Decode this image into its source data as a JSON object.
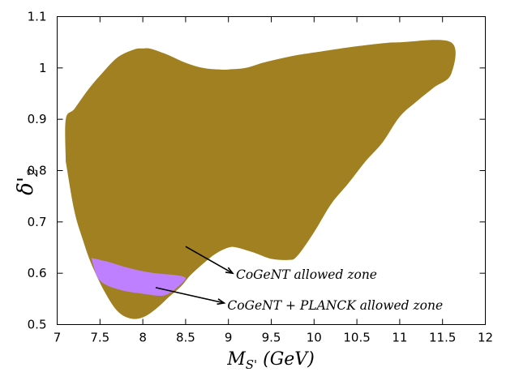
{
  "chart_data": {
    "type": "area",
    "xlim": [
      7,
      12
    ],
    "ylim": [
      0.5,
      1.1
    ],
    "x_ticks": [
      7,
      7.5,
      8,
      8.5,
      9,
      9.5,
      10,
      10.5,
      11,
      11.5,
      12
    ],
    "x_tick_labels": [
      "7",
      "7.5",
      "8",
      "8.5",
      "9",
      "9.5",
      "10",
      "10.5",
      "11",
      "11.5",
      "12"
    ],
    "y_ticks": [
      0.5,
      0.6,
      0.7,
      0.8,
      0.9,
      1.0,
      1.1
    ],
    "y_tick_labels": [
      "0.5",
      "0.6",
      "0.7",
      "0.8",
      "0.9",
      "1",
      "1.1"
    ],
    "xlabel": {
      "main": "M",
      "sub": "S'",
      "rest": " (GeV)"
    },
    "ylabel": {
      "main": "δ'",
      "sub": "2"
    },
    "grid": false,
    "series": [
      {
        "name": "CoGeNT allowed zone",
        "color": "#a08020",
        "boundary": [
          [
            7.1,
            0.818
          ],
          [
            7.1,
            0.9
          ],
          [
            7.2,
            0.92
          ],
          [
            7.35,
            0.955
          ],
          [
            7.5,
            0.985
          ],
          [
            7.7,
            1.02
          ],
          [
            7.9,
            1.036
          ],
          [
            8.0,
            1.038
          ],
          [
            8.1,
            1.037
          ],
          [
            8.3,
            1.025
          ],
          [
            8.5,
            1.01
          ],
          [
            8.7,
            1.0
          ],
          [
            8.9,
            0.997
          ],
          [
            9.0,
            0.997
          ],
          [
            9.2,
            1.0
          ],
          [
            9.4,
            1.01
          ],
          [
            9.6,
            1.018
          ],
          [
            9.8,
            1.025
          ],
          [
            10.0,
            1.03
          ],
          [
            10.4,
            1.04
          ],
          [
            10.8,
            1.048
          ],
          [
            11.0,
            1.05
          ],
          [
            11.6,
            1.05
          ],
          [
            11.6,
            0.988
          ],
          [
            11.4,
            0.962
          ],
          [
            11.2,
            0.935
          ],
          [
            11.0,
            0.905
          ],
          [
            10.8,
            0.855
          ],
          [
            10.6,
            0.818
          ],
          [
            10.4,
            0.775
          ],
          [
            10.2,
            0.735
          ],
          [
            10.0,
            0.68
          ],
          [
            9.8,
            0.633
          ],
          [
            9.7,
            0.626
          ],
          [
            9.5,
            0.628
          ],
          [
            9.3,
            0.64
          ],
          [
            9.1,
            0.65
          ],
          [
            9.0,
            0.65
          ],
          [
            8.85,
            0.638
          ],
          [
            8.7,
            0.618
          ],
          [
            8.55,
            0.595
          ],
          [
            8.45,
            0.575
          ],
          [
            8.3,
            0.553
          ],
          [
            8.15,
            0.53
          ],
          [
            8.0,
            0.514
          ],
          [
            7.85,
            0.512
          ],
          [
            7.7,
            0.527
          ],
          [
            7.55,
            0.565
          ],
          [
            7.4,
            0.618
          ],
          [
            7.3,
            0.665
          ],
          [
            7.2,
            0.722
          ],
          [
            7.1,
            0.818
          ]
        ]
      },
      {
        "name": "CoGeNT + PLANCK allowed zone",
        "color": "#bf80ff",
        "boundary": [
          [
            7.4,
            0.63
          ],
          [
            7.6,
            0.622
          ],
          [
            7.8,
            0.612
          ],
          [
            8.0,
            0.604
          ],
          [
            8.2,
            0.599
          ],
          [
            8.4,
            0.596
          ],
          [
            8.5,
            0.59
          ],
          [
            8.4,
            0.572
          ],
          [
            8.3,
            0.56
          ],
          [
            8.2,
            0.556
          ],
          [
            8.0,
            0.56
          ],
          [
            7.8,
            0.565
          ],
          [
            7.6,
            0.575
          ],
          [
            7.5,
            0.586
          ],
          [
            7.45,
            0.6
          ],
          [
            7.4,
            0.63
          ]
        ]
      }
    ],
    "annotations": [
      {
        "text": "CoGeNT allowed zone",
        "arrow_from": [
          8.5,
          0.652
        ],
        "arrow_to": [
          9.05,
          0.6
        ],
        "text_at": [
          9.05,
          0.597
        ]
      },
      {
        "text": "CoGeNT + PLANCK allowed zone",
        "arrow_from": [
          8.15,
          0.572
        ],
        "arrow_to": [
          8.95,
          0.542
        ],
        "text_at": [
          8.95,
          0.537
        ]
      }
    ]
  }
}
